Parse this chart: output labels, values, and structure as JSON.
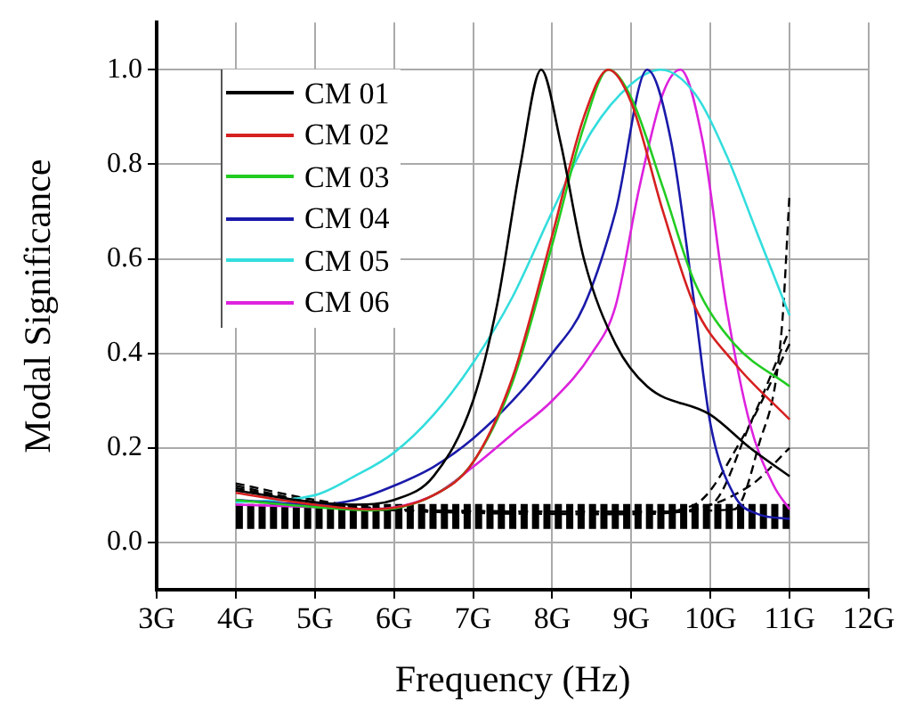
{
  "chart_data": {
    "type": "line",
    "xlabel": "Frequency (Hz)",
    "ylabel": "Modal Significance",
    "xlim": [
      3,
      12
    ],
    "ylim": [
      -0.1,
      1.1
    ],
    "xticks": [
      {
        "value": 3,
        "label": "3G"
      },
      {
        "value": 4,
        "label": "4G"
      },
      {
        "value": 5,
        "label": "5G"
      },
      {
        "value": 6,
        "label": "6G"
      },
      {
        "value": 7,
        "label": "7G"
      },
      {
        "value": 8,
        "label": "8G"
      },
      {
        "value": 9,
        "label": "9G"
      },
      {
        "value": 10,
        "label": "10G"
      },
      {
        "value": 11,
        "label": "11G"
      },
      {
        "value": 12,
        "label": "12G"
      }
    ],
    "yticks": [
      {
        "value": 0,
        "label": "0.0"
      },
      {
        "value": 0.2,
        "label": "0.2"
      },
      {
        "value": 0.4,
        "label": "0.4"
      },
      {
        "value": 0.6,
        "label": "0.6"
      },
      {
        "value": 0.8,
        "label": "0.8"
      },
      {
        "value": 1,
        "label": "1.0"
      }
    ],
    "grid": true,
    "legend": "top left",
    "marker": "none",
    "series": [
      {
        "line_style": "dashed",
        "color": "#000000",
        "x": [
          4,
          6,
          8,
          10,
          11
        ],
        "values": [
          0.055,
          0.055,
          0.055,
          0.055,
          0.055
        ]
      },
      {
        "line_style": "dashed",
        "color": "#000000",
        "x": [
          4,
          5,
          6,
          9,
          10.3,
          10.6,
          10.9,
          11
        ],
        "values": [
          0.125,
          0.09,
          0.07,
          0.065,
          0.07,
          0.2,
          0.45,
          0.74
        ]
      },
      {
        "line_style": "dashed",
        "color": "#000000",
        "x": [
          4,
          5,
          6,
          9,
          10,
          10.5,
          11
        ],
        "values": [
          0.12,
          0.085,
          0.07,
          0.06,
          0.08,
          0.25,
          0.45
        ]
      },
      {
        "line_style": "dashed",
        "color": "#000000",
        "x": [
          4,
          5,
          6,
          9,
          9.8,
          10.4,
          11
        ],
        "values": [
          0.115,
          0.085,
          0.068,
          0.06,
          0.08,
          0.22,
          0.42
        ]
      },
      {
        "line_style": "dashed",
        "color": "#000000",
        "x": [
          4,
          6,
          9.5,
          10.5,
          11
        ],
        "values": [
          0.11,
          0.068,
          0.065,
          0.12,
          0.2
        ]
      },
      {
        "name": "CM 01",
        "line_style": "solid",
        "color": "#000000",
        "x": [
          4,
          5,
          5.5,
          6,
          6.5,
          7,
          7.3,
          7.6,
          7.86,
          8.1,
          8.4,
          8.8,
          9.2,
          10,
          10.5,
          11
        ],
        "values": [
          0.11,
          0.085,
          0.08,
          0.09,
          0.14,
          0.3,
          0.5,
          0.8,
          1.0,
          0.85,
          0.6,
          0.42,
          0.33,
          0.27,
          0.2,
          0.14
        ]
      },
      {
        "name": "CM 02",
        "line_style": "solid",
        "color": "#d62020",
        "x": [
          4,
          5,
          5.7,
          6.5,
          7,
          7.5,
          8,
          8.4,
          8.71,
          9,
          9.4,
          9.8,
          10.3,
          11
        ],
        "values": [
          0.105,
          0.08,
          0.07,
          0.1,
          0.17,
          0.35,
          0.65,
          0.9,
          1.0,
          0.93,
          0.7,
          0.5,
          0.38,
          0.26
        ]
      },
      {
        "name": "CM 03",
        "line_style": "solid",
        "color": "#22cc22",
        "x": [
          4,
          5,
          5.7,
          6.5,
          7,
          7.5,
          8,
          8.4,
          8.71,
          9,
          9.4,
          9.8,
          10.3,
          11
        ],
        "values": [
          0.09,
          0.075,
          0.068,
          0.1,
          0.17,
          0.34,
          0.63,
          0.88,
          1.0,
          0.94,
          0.75,
          0.55,
          0.42,
          0.33
        ]
      },
      {
        "name": "CM 04",
        "line_style": "solid",
        "color": "#1a1aaa",
        "x": [
          4,
          5,
          5.5,
          6,
          6.5,
          7,
          7.5,
          8,
          8.4,
          8.8,
          9.2,
          9.5,
          9.8,
          10,
          10.3,
          10.6,
          11
        ],
        "values": [
          0.09,
          0.08,
          0.09,
          0.12,
          0.16,
          0.22,
          0.3,
          0.4,
          0.5,
          0.7,
          1.0,
          0.85,
          0.5,
          0.25,
          0.1,
          0.06,
          0.05
        ]
      },
      {
        "name": "CM 05",
        "line_style": "solid",
        "color": "#33dddd",
        "x": [
          4,
          5,
          5.5,
          6,
          6.5,
          7,
          7.5,
          8,
          8.5,
          9,
          9.37,
          9.8,
          10.2,
          10.6,
          11
        ],
        "values": [
          0.085,
          0.1,
          0.14,
          0.19,
          0.27,
          0.38,
          0.52,
          0.7,
          0.87,
          0.97,
          1.0,
          0.95,
          0.82,
          0.65,
          0.48
        ]
      },
      {
        "name": "CM 06",
        "line_style": "solid",
        "color": "#dd22dd",
        "x": [
          4,
          5,
          5.7,
          6.5,
          7,
          7.5,
          8,
          8.5,
          8.8,
          9.1,
          9.4,
          9.62,
          9.9,
          10.2,
          10.5,
          10.8,
          11
        ],
        "values": [
          0.08,
          0.075,
          0.07,
          0.1,
          0.16,
          0.23,
          0.3,
          0.4,
          0.5,
          0.75,
          0.95,
          1.0,
          0.85,
          0.5,
          0.25,
          0.12,
          0.07
        ]
      }
    ]
  }
}
